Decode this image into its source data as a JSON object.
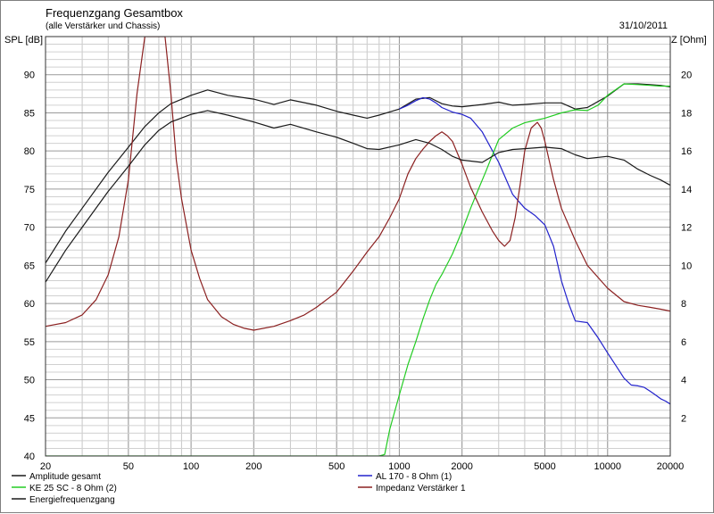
{
  "chart_data": {
    "type": "line",
    "title": "Frequenzgang Gesamtbox",
    "subtitle": "(alle Verstärker und Chassis)",
    "date": "31/10/2011",
    "ylabel": "SPL [dB]",
    "y2label": "Z [Ohm]",
    "xscale": "log",
    "xlim": [
      20,
      20000
    ],
    "ylim": [
      40,
      95
    ],
    "y2lim": [
      0,
      22
    ],
    "x_ticks": [
      20,
      50,
      100,
      200,
      500,
      1000,
      2000,
      5000,
      10000,
      20000
    ],
    "x_tick_labels": [
      "20",
      "50",
      "100",
      "200",
      "500",
      "1000",
      "2000",
      "5000",
      "10000",
      "20000"
    ],
    "y_ticks": [
      40,
      45,
      50,
      55,
      60,
      65,
      70,
      75,
      80,
      85,
      90
    ],
    "y_tick_labels": [
      "40",
      "45",
      "50",
      "55",
      "60",
      "65",
      "70",
      "75",
      "80",
      "85",
      "90"
    ],
    "y2_ticks": [
      2,
      4,
      6,
      8,
      10,
      12,
      14,
      16,
      18,
      20
    ],
    "y2_tick_labels": [
      "2",
      "4",
      "6",
      "8",
      "10",
      "12",
      "14",
      "16",
      "18",
      "20"
    ],
    "grid": true,
    "legend_position": "bottom",
    "series": [
      {
        "name": "Amplitude gesamt",
        "color": "#1a1a1a",
        "axis": "left",
        "x": [
          20,
          25,
          30,
          40,
          50,
          60,
          70,
          80,
          100,
          120,
          150,
          200,
          250,
          300,
          400,
          500,
          600,
          700,
          800,
          1000,
          1200,
          1400,
          1600,
          1800,
          2000,
          2500,
          3000,
          3500,
          4000,
          5000,
          6000,
          7000,
          8000,
          10000,
          12000,
          14000,
          16000,
          18000,
          20000
        ],
        "y": [
          65.3,
          69.5,
          72.5,
          77.2,
          80.5,
          83.2,
          85.0,
          86.2,
          87.3,
          88.0,
          87.3,
          86.8,
          86.1,
          86.7,
          86.0,
          85.2,
          84.7,
          84.3,
          84.7,
          85.5,
          86.8,
          87.0,
          86.2,
          85.9,
          85.8,
          86.1,
          86.4,
          86.0,
          86.1,
          86.3,
          86.3,
          85.5,
          85.7,
          87.2,
          88.8,
          88.8,
          88.7,
          88.6,
          88.4
        ]
      },
      {
        "name": "AL 170 - 8 Ohm (1)",
        "color": "#2222cc",
        "axis": "left",
        "x": [
          1000,
          1100,
          1200,
          1300,
          1400,
          1500,
          1600,
          1800,
          2000,
          2200,
          2500,
          3000,
          3500,
          4000,
          4500,
          5000,
          5500,
          6000,
          6500,
          7000,
          8000,
          9000,
          10000,
          11000,
          12000,
          13000,
          14000,
          15000,
          16000,
          17000,
          18000,
          19000,
          20000
        ],
        "y": [
          85.5,
          86.0,
          86.6,
          87.0,
          86.8,
          86.3,
          85.7,
          85.1,
          84.8,
          84.3,
          82.5,
          78.5,
          74.3,
          72.5,
          71.5,
          70.3,
          67.5,
          63.0,
          60.0,
          57.7,
          57.5,
          55.5,
          53.5,
          51.8,
          50.2,
          49.3,
          49.2,
          49.0,
          48.5,
          48.0,
          47.5,
          47.2,
          46.8
        ]
      },
      {
        "name": "KE 25 SC - 8 Ohm  (2)",
        "color": "#22cc22",
        "axis": "left",
        "x": [
          20,
          800,
          850,
          900,
          1000,
          1100,
          1200,
          1300,
          1400,
          1500,
          1600,
          1800,
          2000,
          2200,
          2400,
          2600,
          2800,
          3000,
          3500,
          4000,
          5000,
          6000,
          7000,
          8000,
          9000,
          10000,
          12000,
          14000,
          16000,
          18000,
          20000
        ],
        "y": [
          40.0,
          40.0,
          40.2,
          43.5,
          48.0,
          52.0,
          55.0,
          58.0,
          60.5,
          62.5,
          63.8,
          66.5,
          69.5,
          72.5,
          75.0,
          77.3,
          79.5,
          81.5,
          83.0,
          83.7,
          84.3,
          85.0,
          85.4,
          85.3,
          86.0,
          87.3,
          88.8,
          88.7,
          88.6,
          88.5,
          88.5
        ]
      },
      {
        "name": "Impedanz Verstärker 1",
        "color": "#8b2020",
        "axis": "right",
        "x": [
          20,
          25,
          30,
          35,
          40,
          45,
          50,
          55,
          60,
          65,
          70,
          75,
          80,
          85,
          90,
          100,
          110,
          120,
          140,
          160,
          180,
          200,
          250,
          300,
          350,
          400,
          500,
          600,
          700,
          800,
          900,
          1000,
          1100,
          1200,
          1300,
          1400,
          1500,
          1600,
          1700,
          1800,
          2000,
          2200,
          2500,
          2800,
          3000,
          3200,
          3400,
          3600,
          3800,
          4000,
          4300,
          4600,
          4800,
          5000,
          5500,
          6000,
          7000,
          8000,
          10000,
          12000,
          14000,
          16000,
          18000,
          20000
        ],
        "y": [
          6.8,
          7.0,
          7.4,
          8.2,
          9.5,
          11.5,
          14.5,
          19.0,
          22.0,
          22.0,
          22.0,
          22.0,
          19.0,
          15.5,
          13.5,
          10.8,
          9.3,
          8.2,
          7.3,
          6.9,
          6.7,
          6.6,
          6.8,
          7.1,
          7.4,
          7.8,
          8.6,
          9.7,
          10.7,
          11.5,
          12.5,
          13.5,
          14.8,
          15.6,
          16.1,
          16.5,
          16.8,
          17.0,
          16.8,
          16.5,
          15.3,
          14.1,
          12.8,
          11.8,
          11.3,
          11.0,
          11.3,
          12.5,
          14.2,
          16.0,
          17.2,
          17.5,
          17.2,
          16.5,
          14.5,
          13.0,
          11.3,
          10.0,
          8.8,
          8.1,
          7.9,
          7.8,
          7.7,
          7.6
        ]
      },
      {
        "name": "Energiefrequenzgang",
        "color": "#1a1a1a",
        "axis": "left",
        "x": [
          20,
          25,
          30,
          40,
          50,
          60,
          70,
          80,
          100,
          120,
          150,
          200,
          250,
          300,
          400,
          500,
          600,
          700,
          800,
          1000,
          1200,
          1400,
          1600,
          1800,
          2000,
          2500,
          3000,
          3500,
          4000,
          5000,
          6000,
          7000,
          8000,
          10000,
          12000,
          14000,
          16000,
          18000,
          20000
        ],
        "y": [
          62.8,
          67.0,
          70.0,
          74.7,
          78.0,
          80.8,
          82.7,
          83.8,
          84.8,
          85.3,
          84.7,
          83.8,
          83.0,
          83.5,
          82.5,
          81.8,
          81.0,
          80.3,
          80.2,
          80.8,
          81.5,
          81.0,
          80.2,
          79.3,
          78.8,
          78.5,
          79.8,
          80.2,
          80.3,
          80.5,
          80.3,
          79.5,
          79.0,
          79.3,
          78.8,
          77.6,
          76.8,
          76.2,
          75.5
        ]
      }
    ],
    "legend": [
      {
        "label": "Amplitude gesamt",
        "color": "#1a1a1a"
      },
      {
        "label": "AL 170 - 8 Ohm (1)",
        "color": "#2222cc"
      },
      {
        "label": "KE 25 SC - 8 Ohm  (2)",
        "color": "#22cc22"
      },
      {
        "label": "Impedanz Verstärker 1",
        "color": "#8b2020"
      },
      {
        "label": "Energiefrequenzgang",
        "color": "#1a1a1a"
      }
    ]
  }
}
